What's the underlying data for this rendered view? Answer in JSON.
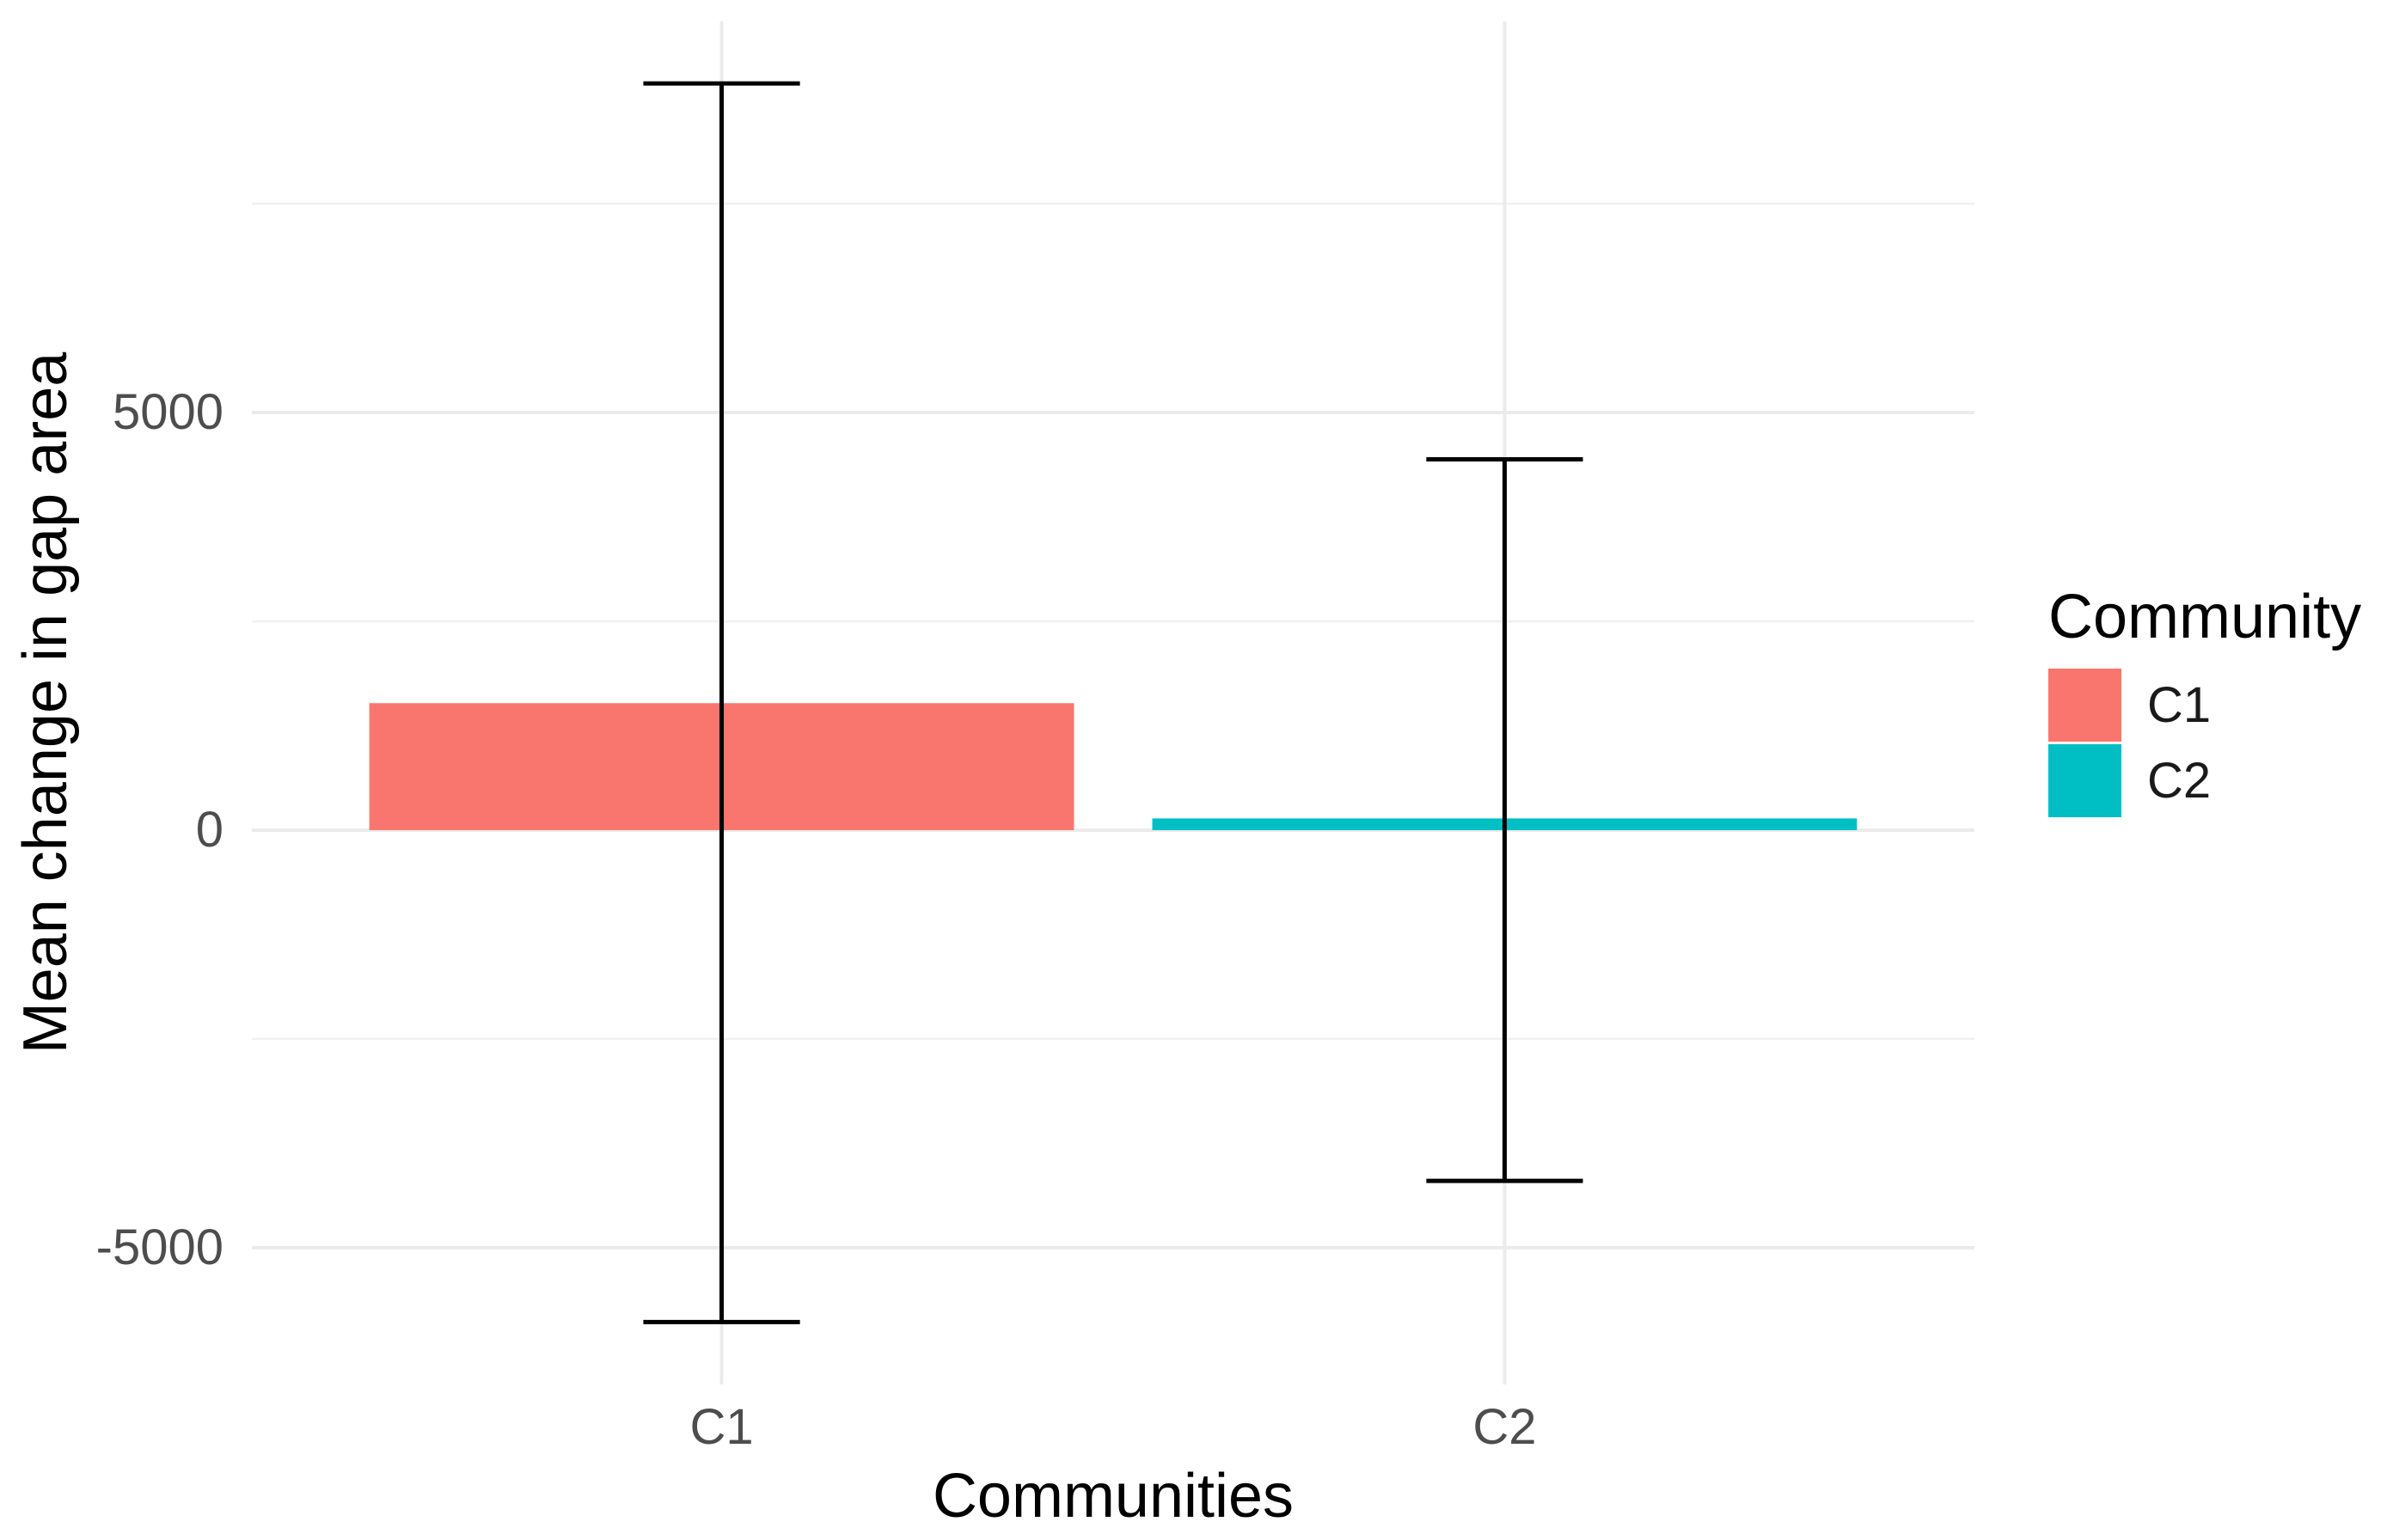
{
  "figure": {
    "background": "#ffffff",
    "tick_text_color": "#4d4d4d",
    "title_text_color": "#000000",
    "grid_major_color": "#ebebeb",
    "grid_minor_color": "#f0f0f0",
    "errorbar_color": "#000000"
  },
  "chart_data": {
    "type": "bar",
    "title": "",
    "xlabel": "Communities",
    "ylabel": "Mean change in gap area",
    "categories": [
      "C1",
      "C2"
    ],
    "series": [
      {
        "name": "Mean change in gap area",
        "values": [
          1520,
          140
        ]
      }
    ],
    "bars": [
      {
        "category": "C1",
        "mean": 1520,
        "lower": -5890,
        "upper": 8940,
        "color": "#F8766D"
      },
      {
        "category": "C2",
        "mean": 140,
        "lower": -4200,
        "upper": 4440,
        "color": "#00BFC4"
      }
    ],
    "ylim": [
      -6637,
      9682
    ],
    "yticks": [
      {
        "value": 5000,
        "label": "5000"
      },
      {
        "value": 0,
        "label": "0"
      },
      {
        "value": -5000,
        "label": "-5000"
      }
    ],
    "yticks_minor": [
      7500,
      2500,
      -2500
    ],
    "grid": "horizontal major+minor on; vertical major at category centers; no axis lines",
    "legend": {
      "title": "Community",
      "position": "right",
      "entries": [
        {
          "label": "C1",
          "color": "#F8766D"
        },
        {
          "label": "C2",
          "color": "#00BFC4"
        }
      ]
    }
  }
}
